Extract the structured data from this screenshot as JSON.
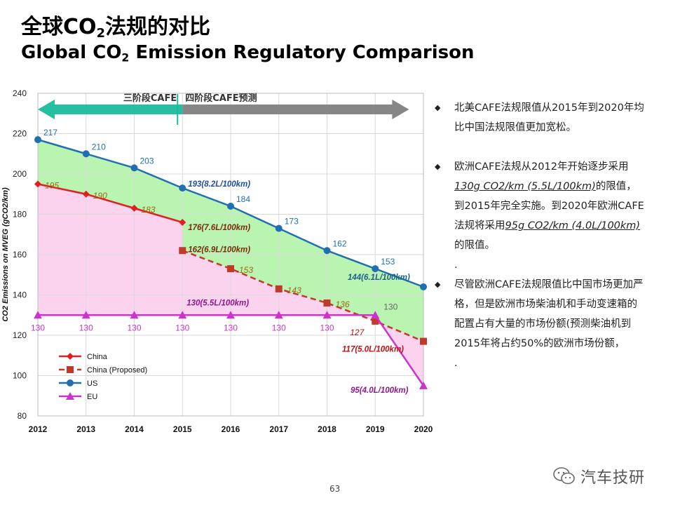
{
  "header": {
    "title_zh_prefix": "全球CO",
    "title_zh_sub": "2",
    "title_zh_suffix": "法规的对比",
    "title_en_prefix": "Global CO",
    "title_en_sub": "2",
    "title_en_suffix": " Emission Regulatory Comparison"
  },
  "chart_data": {
    "type": "line",
    "title": "",
    "xlabel": "",
    "ylabel": "CO2 Emissions on MVEG (gCO2/km)",
    "categories": [
      "2012",
      "2013",
      "2014",
      "2015",
      "2016",
      "2017",
      "2018",
      "2019",
      "2020"
    ],
    "ylim": [
      80,
      240
    ],
    "yticks": [
      80,
      100,
      120,
      140,
      160,
      180,
      200,
      220,
      240
    ],
    "grid": true,
    "legend_position": "bottom-left",
    "series": [
      {
        "name": "China",
        "color": "#e02020",
        "marker": "diamond",
        "dash": false,
        "points": [
          [
            2012,
            195
          ],
          [
            2013,
            190
          ],
          [
            2014,
            183
          ],
          [
            2015,
            176
          ]
        ],
        "point_labels": [
          "195",
          "190",
          "183",
          ""
        ]
      },
      {
        "name": "China (Proposed)",
        "color": "#c0392b",
        "marker": "square",
        "dash": true,
        "points": [
          [
            2015,
            162
          ],
          [
            2016,
            153
          ],
          [
            2017,
            143
          ],
          [
            2018,
            136
          ],
          [
            2019,
            127
          ],
          [
            2020,
            117
          ]
        ],
        "point_labels": [
          "",
          "153",
          "143",
          "136",
          "127",
          ""
        ]
      },
      {
        "name": "US",
        "color": "#1f6fb2",
        "marker": "circle",
        "dash": false,
        "points": [
          [
            2012,
            217
          ],
          [
            2013,
            210
          ],
          [
            2014,
            203
          ],
          [
            2015,
            193
          ],
          [
            2016,
            184
          ],
          [
            2017,
            173
          ],
          [
            2018,
            162
          ],
          [
            2019,
            153
          ],
          [
            2020,
            144
          ]
        ],
        "point_labels": [
          "217",
          "210",
          "203",
          "",
          "184",
          "173",
          "162",
          "153",
          ""
        ]
      },
      {
        "name": "EU",
        "color": "#cc33cc",
        "marker": "triangle",
        "dash": false,
        "points": [
          [
            2012,
            130
          ],
          [
            2013,
            130
          ],
          [
            2014,
            130
          ],
          [
            2015,
            130
          ],
          [
            2016,
            130
          ],
          [
            2017,
            130
          ],
          [
            2018,
            130
          ],
          [
            2019,
            130
          ],
          [
            2020,
            95
          ]
        ],
        "point_labels": [
          "130",
          "130",
          "130",
          "130",
          "130",
          "130",
          "130",
          "130",
          ""
        ]
      }
    ],
    "annotations": [
      {
        "text": "193(8.2L/100km)",
        "x": 2015,
        "y": 193,
        "color": "#1f4e9c"
      },
      {
        "text": "176(7.6L/100km)",
        "x": 2015,
        "y": 176,
        "color": "#7a2a10"
      },
      {
        "text": "162(6.9L/100km)",
        "x": 2015,
        "y": 162,
        "color": "#7a2a10"
      },
      {
        "text": "130(5.5L/100km)",
        "x": 2015,
        "y": 130,
        "color": "#8a1a8a"
      },
      {
        "text": "144(6.1L/100km)",
        "x": 2020,
        "y": 144,
        "color": "#1f5f8f"
      },
      {
        "text": "117(5.0L/100km)",
        "x": 2020,
        "y": 117,
        "color": "#c01010"
      },
      {
        "text": "95(4.0L/100km)",
        "x": 2020,
        "y": 95,
        "color": "#8a1a8a"
      }
    ],
    "phase_arrows": [
      {
        "label": "三阶段CAFE",
        "from": 2012,
        "to": 2015,
        "color": "#1abc9c"
      },
      {
        "label": "四阶段CAFE预测",
        "from": 2015,
        "to": 2019.7,
        "color": "#7f7f7f"
      }
    ],
    "colors": {
      "us_band": "#b9f5b0",
      "china_band": "#fbd3ee",
      "grid": "#d9d9d9"
    }
  },
  "notes": {
    "marker": "◆",
    "p1": "北美CAFE法规限值从2015年到2020年均比中国法规限值更加宽松。",
    "p2_a": "欧洲CAFE法规从2012年开始逐步采用",
    "p2_hl1": "130g CO2/km (5.5L/100km)",
    "p2_b": "的限值，到2015年完全实施。到2020年欧洲CAFE法规将采用",
    "p2_hl2": "95g CO2/km (4.0L/100km)",
    "p2_c": "的限值。",
    "dot1": ".",
    "p3": "尽管欧洲CAFE法规限值比中国市场更加严格，但是欧洲市场柴油机和手动变速箱的配置占有大量的市场份额(预测柴油机到2015年将占约50%的欧洲市场份额，",
    "dot2": "."
  },
  "footer": {
    "page_number": "63",
    "watermark": "汽车技研",
    "watermark_icon": "wechat-icon"
  }
}
